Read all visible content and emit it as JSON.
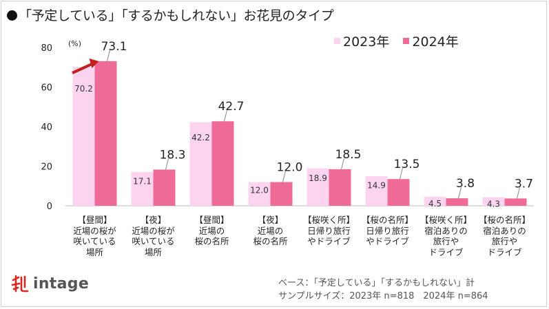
{
  "title": "「予定している」「するかもしれない」お花見のタイプ",
  "legend": {
    "series1": "2023年",
    "series2": "2024年"
  },
  "colors": {
    "series1": "#fcd4f0",
    "series2": "#ef6b97",
    "axis": "#bbbbbb",
    "arrow": "#c0211f"
  },
  "chart_data": {
    "type": "bar",
    "unit_label": "(%)",
    "ylim": [
      0,
      80
    ],
    "yticks": [
      "0",
      "20",
      "40",
      "60",
      "80"
    ],
    "categories": [
      "【昼間】\n近場の桜が\n咲いている\n場所",
      "【夜】\n近場の桜が\n咲いている\n場所",
      "【昼間】\n近場の\n桜の名所",
      "【夜】\n近場の\n桜の名所",
      "【桜咲く所】\n日帰り旅行\nやドライブ",
      "【桜の名所】\n日帰り旅行\nやドライブ",
      "【桜咲く所】\n宿泊ありの\n旅行や\nドライブ",
      "【桜の名所】\n宿泊ありの\n旅行や\nドライブ"
    ],
    "series": [
      {
        "name": "2023年",
        "values": [
          70.2,
          17.1,
          42.2,
          12.0,
          18.9,
          14.9,
          4.5,
          4.3
        ],
        "labels": [
          "70.2",
          "17.1",
          "42.2",
          "12.0",
          "18.9",
          "14.9",
          "4.5",
          "4.3"
        ]
      },
      {
        "name": "2024年",
        "values": [
          73.1,
          18.3,
          42.7,
          12.0,
          18.5,
          13.5,
          3.8,
          3.7
        ],
        "labels": [
          "73.1",
          "18.3",
          "42.7",
          "12.0",
          "18.5",
          "13.5",
          "3.8",
          "3.7"
        ]
      }
    ]
  },
  "logo": {
    "text": "intage"
  },
  "notes": {
    "base": "ベース：「予定している」「するかもしれない」計",
    "sample": "サンプルサイズ：2023年 n=818　2024年 n=864"
  }
}
